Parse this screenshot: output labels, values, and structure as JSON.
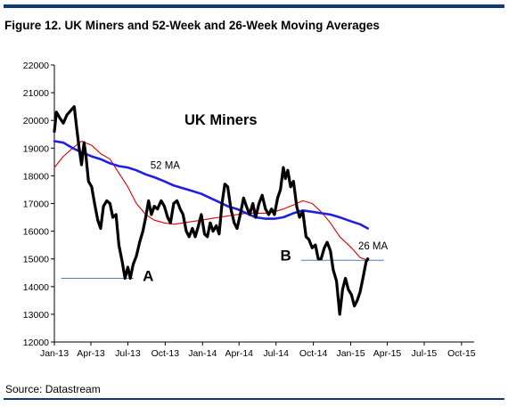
{
  "figure_title": "Figure 12. UK Miners and 52-Week and 26-Week Moving Averages",
  "source": "Source: Datastream",
  "chart_data": {
    "type": "line",
    "title": "UK Miners",
    "xlabel": "",
    "ylabel": "",
    "x_range": [
      "2013-01-01",
      "2015-11-01"
    ],
    "ylim": [
      12000,
      22000
    ],
    "yticks": [
      12000,
      13000,
      14000,
      15000,
      16000,
      17000,
      18000,
      19000,
      20000,
      21000,
      22000
    ],
    "xticks": [
      {
        "date": "2013-01-01",
        "label": "Jan-13"
      },
      {
        "date": "2013-04-01",
        "label": "Apr-13"
      },
      {
        "date": "2013-07-01",
        "label": "Jul-13"
      },
      {
        "date": "2013-10-01",
        "label": "Oct-13"
      },
      {
        "date": "2014-01-01",
        "label": "Jan-14"
      },
      {
        "date": "2014-04-01",
        "label": "Apr-14"
      },
      {
        "date": "2014-07-01",
        "label": "Jul-14"
      },
      {
        "date": "2014-10-01",
        "label": "Oct-14"
      },
      {
        "date": "2015-01-01",
        "label": "Jan-15"
      },
      {
        "date": "2015-04-01",
        "label": "Apr-15"
      },
      {
        "date": "2015-07-01",
        "label": "Jul-15"
      },
      {
        "date": "2015-10-01",
        "label": "Oct-15"
      }
    ],
    "grid": false,
    "series": [
      {
        "name": "",
        "color": "#000000",
        "points": [
          [
            "2013-01-01",
            19600
          ],
          [
            "2013-01-06",
            20300
          ],
          [
            "2013-01-14",
            20100
          ],
          [
            "2013-01-23",
            19900
          ],
          [
            "2013-02-01",
            20200
          ],
          [
            "2013-02-10",
            20350
          ],
          [
            "2013-02-19",
            20500
          ],
          [
            "2013-02-26",
            19600
          ],
          [
            "2013-03-03",
            19000
          ],
          [
            "2013-03-09",
            18400
          ],
          [
            "2013-03-15",
            19200
          ],
          [
            "2013-03-20",
            18700
          ],
          [
            "2013-03-26",
            17800
          ],
          [
            "2013-04-03",
            17600
          ],
          [
            "2013-04-10",
            17000
          ],
          [
            "2013-04-18",
            16400
          ],
          [
            "2013-04-25",
            16100
          ],
          [
            "2013-05-02",
            16900
          ],
          [
            "2013-05-10",
            17100
          ],
          [
            "2013-05-18",
            17000
          ],
          [
            "2013-05-25",
            16500
          ],
          [
            "2013-06-02",
            16600
          ],
          [
            "2013-06-09",
            15500
          ],
          [
            "2013-06-17",
            14900
          ],
          [
            "2013-06-24",
            14300
          ],
          [
            "2013-07-01",
            14700
          ],
          [
            "2013-07-07",
            14300
          ],
          [
            "2013-07-14",
            14800
          ],
          [
            "2013-07-22",
            15100
          ],
          [
            "2013-07-30",
            15600
          ],
          [
            "2013-08-07",
            16000
          ],
          [
            "2013-08-14",
            16500
          ],
          [
            "2013-08-21",
            17100
          ],
          [
            "2013-08-28",
            16600
          ],
          [
            "2013-09-04",
            16900
          ],
          [
            "2013-09-12",
            16800
          ],
          [
            "2013-09-21",
            17100
          ],
          [
            "2013-09-29",
            16900
          ],
          [
            "2013-10-07",
            16500
          ],
          [
            "2013-10-14",
            16300
          ],
          [
            "2013-10-22",
            17000
          ],
          [
            "2013-10-30",
            17100
          ],
          [
            "2013-11-07",
            16800
          ],
          [
            "2013-11-14",
            16600
          ],
          [
            "2013-11-22",
            16000
          ],
          [
            "2013-11-29",
            15800
          ],
          [
            "2013-12-07",
            16100
          ],
          [
            "2013-12-14",
            15800
          ],
          [
            "2013-12-22",
            16200
          ],
          [
            "2013-12-29",
            16600
          ],
          [
            "2014-01-06",
            15900
          ],
          [
            "2014-01-13",
            15800
          ],
          [
            "2014-01-20",
            16300
          ],
          [
            "2014-01-27",
            16000
          ],
          [
            "2014-02-04",
            16200
          ],
          [
            "2014-02-11",
            15900
          ],
          [
            "2014-02-18",
            17000
          ],
          [
            "2014-02-25",
            17700
          ],
          [
            "2014-03-04",
            17600
          ],
          [
            "2014-03-12",
            16800
          ],
          [
            "2014-03-20",
            16300
          ],
          [
            "2014-03-27",
            16100
          ],
          [
            "2014-04-04",
            16600
          ],
          [
            "2014-04-12",
            17200
          ],
          [
            "2014-04-19",
            16900
          ],
          [
            "2014-04-27",
            16600
          ],
          [
            "2014-05-05",
            17000
          ],
          [
            "2014-05-12",
            16500
          ],
          [
            "2014-05-20",
            17000
          ],
          [
            "2014-05-28",
            17300
          ],
          [
            "2014-06-05",
            16800
          ],
          [
            "2014-06-13",
            16600
          ],
          [
            "2014-06-20",
            16800
          ],
          [
            "2014-06-27",
            16600
          ],
          [
            "2014-07-05",
            17200
          ],
          [
            "2014-07-12",
            17500
          ],
          [
            "2014-07-19",
            18300
          ],
          [
            "2014-07-24",
            17900
          ],
          [
            "2014-07-30",
            18200
          ],
          [
            "2014-08-06",
            17600
          ],
          [
            "2014-08-13",
            17800
          ],
          [
            "2014-08-21",
            16900
          ],
          [
            "2014-08-28",
            16500
          ],
          [
            "2014-09-05",
            16700
          ],
          [
            "2014-09-13",
            15800
          ],
          [
            "2014-09-20",
            15700
          ],
          [
            "2014-09-28",
            15400
          ],
          [
            "2014-10-06",
            15500
          ],
          [
            "2014-10-13",
            15000
          ],
          [
            "2014-10-20",
            15000
          ],
          [
            "2014-10-28",
            15400
          ],
          [
            "2014-11-04",
            15600
          ],
          [
            "2014-11-12",
            15300
          ],
          [
            "2014-11-19",
            14600
          ],
          [
            "2014-11-27",
            14200
          ],
          [
            "2014-12-05",
            13000
          ],
          [
            "2014-12-12",
            13900
          ],
          [
            "2014-12-19",
            14300
          ],
          [
            "2014-12-26",
            13900
          ],
          [
            "2015-01-03",
            13700
          ],
          [
            "2015-01-10",
            13300
          ],
          [
            "2015-01-17",
            13500
          ],
          [
            "2015-01-24",
            13800
          ],
          [
            "2015-01-31",
            14300
          ],
          [
            "2015-02-08",
            14900
          ],
          [
            "2015-02-12",
            15000
          ]
        ]
      },
      {
        "name": "52 MA",
        "color": "#1f1fe0",
        "points": [
          [
            "2013-01-01",
            19250
          ],
          [
            "2013-01-23",
            19200
          ],
          [
            "2013-02-15",
            19000
          ],
          [
            "2013-03-09",
            18850
          ],
          [
            "2013-04-03",
            18700
          ],
          [
            "2013-04-25",
            18600
          ],
          [
            "2013-05-18",
            18450
          ],
          [
            "2013-06-09",
            18350
          ],
          [
            "2013-07-01",
            18300
          ],
          [
            "2013-07-22",
            18200
          ],
          [
            "2013-08-14",
            18050
          ],
          [
            "2013-09-04",
            17950
          ],
          [
            "2013-09-29",
            17800
          ],
          [
            "2013-10-22",
            17650
          ],
          [
            "2013-11-14",
            17550
          ],
          [
            "2013-12-07",
            17450
          ],
          [
            "2013-12-29",
            17350
          ],
          [
            "2014-01-20",
            17200
          ],
          [
            "2014-02-11",
            17050
          ],
          [
            "2014-03-04",
            16900
          ],
          [
            "2014-03-27",
            16800
          ],
          [
            "2014-04-19",
            16650
          ],
          [
            "2014-05-12",
            16500
          ],
          [
            "2014-06-05",
            16450
          ],
          [
            "2014-06-27",
            16450
          ],
          [
            "2014-07-19",
            16500
          ],
          [
            "2014-08-13",
            16650
          ],
          [
            "2014-09-05",
            16750
          ],
          [
            "2014-09-28",
            16700
          ],
          [
            "2014-10-20",
            16650
          ],
          [
            "2014-11-12",
            16600
          ],
          [
            "2014-12-05",
            16500
          ],
          [
            "2015-01-03",
            16350
          ],
          [
            "2015-01-24",
            16250
          ],
          [
            "2015-02-12",
            16100
          ]
        ]
      },
      {
        "name": "26 MA",
        "color": "#e00000",
        "points": [
          [
            "2013-01-01",
            18300
          ],
          [
            "2013-01-23",
            18700
          ],
          [
            "2013-02-15",
            19000
          ],
          [
            "2013-03-09",
            19250
          ],
          [
            "2013-04-03",
            19100
          ],
          [
            "2013-04-25",
            18800
          ],
          [
            "2013-05-18",
            18600
          ],
          [
            "2013-06-09",
            18100
          ],
          [
            "2013-07-01",
            17600
          ],
          [
            "2013-07-22",
            17000
          ],
          [
            "2013-08-14",
            16600
          ],
          [
            "2013-09-04",
            16400
          ],
          [
            "2013-09-29",
            16300
          ],
          [
            "2013-10-22",
            16250
          ],
          [
            "2013-11-14",
            16300
          ],
          [
            "2013-12-07",
            16350
          ],
          [
            "2013-12-29",
            16400
          ],
          [
            "2014-01-20",
            16450
          ],
          [
            "2014-02-11",
            16500
          ],
          [
            "2014-03-04",
            16550
          ],
          [
            "2014-03-27",
            16600
          ],
          [
            "2014-04-19",
            16650
          ],
          [
            "2014-05-12",
            16650
          ],
          [
            "2014-06-05",
            16650
          ],
          [
            "2014-06-27",
            16700
          ],
          [
            "2014-07-19",
            16800
          ],
          [
            "2014-08-13",
            16950
          ],
          [
            "2014-09-05",
            17100
          ],
          [
            "2014-09-28",
            17000
          ],
          [
            "2014-10-20",
            16700
          ],
          [
            "2014-11-12",
            16300
          ],
          [
            "2014-12-05",
            15800
          ],
          [
            "2015-01-03",
            15400
          ],
          [
            "2015-01-24",
            15050
          ],
          [
            "2015-02-12",
            14950
          ]
        ]
      }
    ],
    "annotations": [
      {
        "text": "UK Miners",
        "kind": "title",
        "at": [
          "2014-02-15",
          19850
        ]
      },
      {
        "text": "52 MA",
        "kind": "series-label",
        "at": [
          "2013-10-01",
          18250
        ]
      },
      {
        "text": "26 MA",
        "kind": "series-label",
        "at": [
          "2015-02-25",
          15350
        ]
      },
      {
        "text": "A",
        "kind": "marker",
        "at": [
          "2013-08-20",
          14200
        ]
      },
      {
        "text": "B",
        "kind": "marker",
        "at": [
          "2014-07-25",
          14950
        ]
      }
    ],
    "reference_lines": [
      {
        "label": "A",
        "y": 14300,
        "x_from": "2013-01-18",
        "x_to": "2013-07-15",
        "color": "#4f81bd"
      },
      {
        "label": "B",
        "y": 14950,
        "x_from": "2014-09-01",
        "x_to": "2015-03-24",
        "color": "#4f81bd"
      }
    ]
  }
}
